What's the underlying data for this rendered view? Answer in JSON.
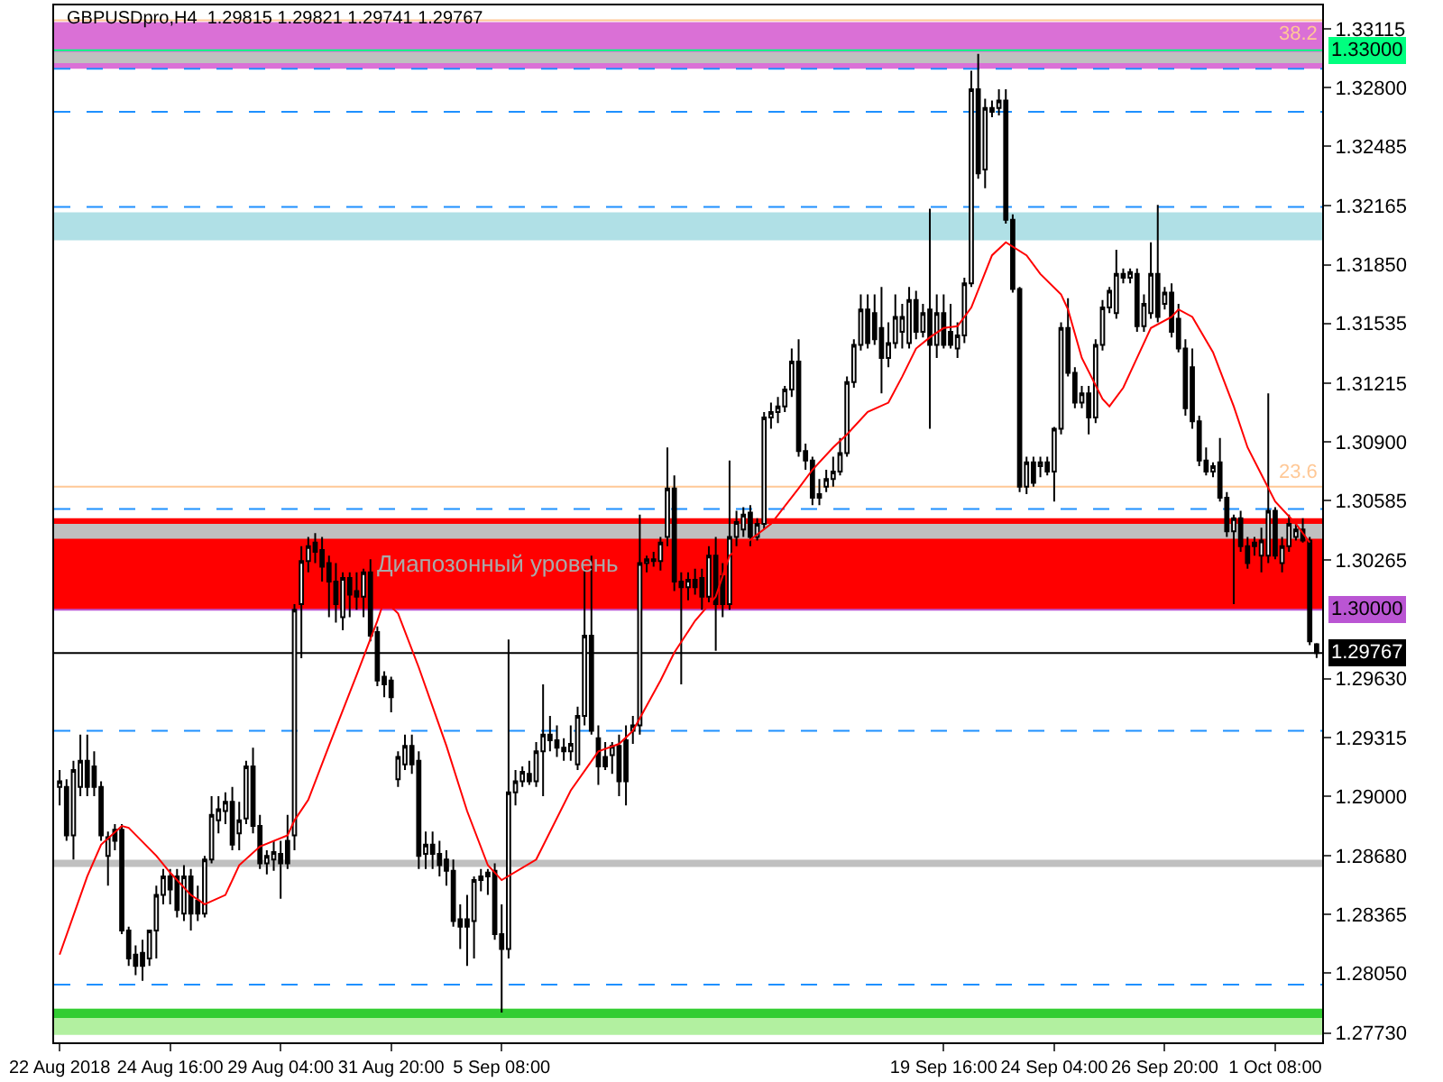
{
  "chart_data": {
    "type": "candlestick",
    "title": "GBPUSDpro,H4  1.29815 1.29821 1.29741 1.29767",
    "color": "#000000",
    "categories": [
      "22 Aug 2018",
      null,
      null,
      null,
      null,
      null,
      null,
      null,
      null,
      null,
      null,
      null,
      null,
      null,
      null,
      null,
      "24 Aug 16:00",
      null,
      null,
      null,
      null,
      null,
      null,
      null,
      null,
      null,
      null,
      null,
      null,
      null,
      null,
      null,
      "29 Aug 04:00",
      null,
      null,
      null,
      null,
      null,
      null,
      null,
      null,
      null,
      null,
      null,
      null,
      null,
      null,
      null,
      "31 Aug 20:00",
      null,
      null,
      null,
      null,
      null,
      null,
      null,
      null,
      null,
      null,
      null,
      null,
      null,
      null,
      null,
      "5 Sep 08:00",
      null,
      null,
      null,
      null,
      null,
      null,
      null,
      null,
      null,
      null,
      null,
      null,
      null,
      null,
      null,
      null,
      null,
      null,
      null,
      null,
      null,
      null,
      null,
      null,
      null,
      null,
      null,
      null,
      null,
      null,
      null,
      null,
      null,
      null,
      null,
      null,
      null,
      null,
      null,
      null,
      null,
      null,
      null,
      null,
      null,
      null,
      null,
      null,
      null,
      null,
      null,
      null,
      null,
      null,
      null,
      null,
      null,
      null,
      null,
      null,
      null,
      null,
      null,
      "19 Sep 16:00",
      null,
      null,
      null,
      null,
      null,
      null,
      null,
      null,
      null,
      null,
      null,
      null,
      null,
      null,
      null,
      "24 Sep 04:00",
      null,
      null,
      null,
      null,
      null,
      null,
      null,
      null,
      null,
      null,
      null,
      null,
      null,
      null,
      null,
      "26 Sep 20:00",
      null,
      null,
      null,
      null,
      null,
      null,
      null,
      null,
      null,
      null,
      null,
      null,
      null,
      null,
      null,
      "1 Oct 08:00",
      null,
      null,
      null,
      null,
      null,
      null
    ],
    "ohlc": [
      [
        1.2905,
        1.2914,
        1.2895,
        1.2908
      ],
      [
        1.2905,
        1.2909,
        1.2876,
        1.2879
      ],
      [
        1.2879,
        1.2919,
        1.2866,
        1.2914
      ],
      [
        1.2905,
        1.2933,
        1.29,
        1.2919
      ],
      [
        1.2919,
        1.2933,
        1.29,
        1.2905
      ],
      [
        1.2916,
        1.2924,
        1.29,
        1.2905
      ],
      [
        1.2905,
        1.2908,
        1.2876,
        1.2879
      ],
      [
        1.2868,
        1.2881,
        1.2852,
        1.2878
      ],
      [
        1.2882,
        1.2885,
        1.2871,
        1.2876
      ],
      [
        1.2882,
        1.2885,
        1.2826,
        1.2828
      ],
      [
        1.2828,
        1.283,
        1.2809,
        1.2813
      ],
      [
        1.2815,
        1.282,
        1.2804,
        1.2809
      ],
      [
        1.2816,
        1.2823,
        1.2801,
        1.2809
      ],
      [
        1.2813,
        1.2828,
        1.2809,
        1.2828
      ],
      [
        1.2828,
        1.2852,
        1.2813,
        1.2847
      ],
      [
        1.2847,
        1.2861,
        1.2842,
        1.2857
      ],
      [
        1.2857,
        1.2861,
        1.2842,
        1.285
      ],
      [
        1.2857,
        1.2861,
        1.2835,
        1.2839
      ],
      [
        1.2837,
        1.2863,
        1.2833,
        1.2857
      ],
      [
        1.2857,
        1.2861,
        1.2828,
        1.2837
      ],
      [
        1.2844,
        1.2852,
        1.2833,
        1.2837
      ],
      [
        1.2837,
        1.2868,
        1.2835,
        1.2866
      ],
      [
        1.2866,
        1.29,
        1.2864,
        1.289
      ],
      [
        1.2887,
        1.29,
        1.288,
        1.2893
      ],
      [
        1.2892,
        1.2902,
        1.2885,
        1.2897
      ],
      [
        1.2897,
        1.2905,
        1.2871,
        1.2874
      ],
      [
        1.288,
        1.2897,
        1.2871,
        1.2887
      ],
      [
        1.2888,
        1.2919,
        1.2885,
        1.2916
      ],
      [
        1.2916,
        1.2926,
        1.288,
        1.2884
      ],
      [
        1.2884,
        1.289,
        1.2861,
        1.2864
      ],
      [
        1.2864,
        1.2871,
        1.2858,
        1.2868
      ],
      [
        1.2866,
        1.2876,
        1.286,
        1.287
      ],
      [
        1.2869,
        1.2876,
        1.2845,
        1.2864
      ],
      [
        1.2876,
        1.289,
        1.2861,
        1.2864
      ],
      [
        1.2879,
        1.3003,
        1.2871,
        1.3
      ],
      [
        1.3003,
        1.3034,
        1.2974,
        1.3026
      ],
      [
        1.3026,
        1.3039,
        1.302,
        1.3034
      ],
      [
        1.3036,
        1.3041,
        1.3025,
        1.3031
      ],
      [
        1.3032,
        1.3039,
        1.3015,
        1.3023
      ],
      [
        1.3025,
        1.3029,
        1.2996,
        1.3015
      ],
      [
        1.3015,
        1.3025,
        1.2993,
        1.3003
      ],
      [
        1.2996,
        1.302,
        1.2989,
        1.3017
      ],
      [
        1.3017,
        1.302,
        1.2996,
        1.3008
      ],
      [
        1.301,
        1.302,
        1.3,
        1.3007
      ],
      [
        1.3007,
        1.3022,
        1.2996,
        1.302
      ],
      [
        1.302,
        1.3027,
        1.2983,
        1.2986
      ],
      [
        1.2988,
        1.2991,
        1.2959,
        1.2962
      ],
      [
        1.2964,
        1.2967,
        1.2953,
        1.296
      ],
      [
        1.2962,
        1.2964,
        1.2945,
        1.2953
      ],
      [
        1.2909,
        1.2924,
        1.2905,
        1.2921
      ],
      [
        1.2917,
        1.2933,
        1.2914,
        1.2927
      ],
      [
        1.2927,
        1.2933,
        1.2912,
        1.2917
      ],
      [
        1.2919,
        1.2924,
        1.2861,
        1.2868
      ],
      [
        1.2869,
        1.2881,
        1.2861,
        1.2874
      ],
      [
        1.2874,
        1.2881,
        1.2861,
        1.2869
      ],
      [
        1.2869,
        1.2876,
        1.2857,
        1.2863
      ],
      [
        1.2866,
        1.2871,
        1.2852,
        1.286
      ],
      [
        1.286,
        1.2866,
        1.283,
        1.2833
      ],
      [
        1.2834,
        1.2842,
        1.2818,
        1.283
      ],
      [
        1.2834,
        1.2847,
        1.2809,
        1.283
      ],
      [
        1.2833,
        1.2857,
        1.2813,
        1.2855
      ],
      [
        1.2855,
        1.2861,
        1.2849,
        1.2857
      ],
      [
        1.2859,
        1.2861,
        1.2847,
        1.2857
      ],
      [
        1.286,
        1.2864,
        1.2823,
        1.2826
      ],
      [
        1.2826,
        1.2842,
        1.2784,
        1.2818
      ],
      [
        1.2818,
        1.2984,
        1.2813,
        1.2902
      ],
      [
        1.2902,
        1.2914,
        1.2895,
        1.2908
      ],
      [
        1.2908,
        1.2916,
        1.2905,
        1.2913
      ],
      [
        1.2912,
        1.2919,
        1.2906,
        1.2908
      ],
      [
        1.2908,
        1.2929,
        1.2905,
        1.2924
      ],
      [
        1.2924,
        1.296,
        1.29,
        1.2933
      ],
      [
        1.2933,
        1.2943,
        1.2924,
        1.293
      ],
      [
        1.293,
        1.2938,
        1.2921,
        1.2926
      ],
      [
        1.2926,
        1.2931,
        1.2919,
        1.2924
      ],
      [
        1.2924,
        1.2938,
        1.2919,
        1.2928
      ],
      [
        1.2917,
        1.2948,
        1.2914,
        1.2943
      ],
      [
        1.2943,
        1.3022,
        1.2938,
        1.2986
      ],
      [
        1.2986,
        1.3029,
        1.2933,
        1.2935
      ],
      [
        1.2931,
        1.2938,
        1.2906,
        1.2916
      ],
      [
        1.2921,
        1.2929,
        1.2914,
        1.2916
      ],
      [
        1.2922,
        1.2929,
        1.2912,
        1.2927
      ],
      [
        1.2927,
        1.2933,
        1.29,
        1.2908
      ],
      [
        1.293,
        1.2938,
        1.2895,
        1.2908
      ],
      [
        1.2935,
        1.2943,
        1.2928,
        1.2938
      ],
      [
        1.2938,
        1.3051,
        1.2933,
        1.3025
      ],
      [
        1.3025,
        1.3029,
        1.302,
        1.3027
      ],
      [
        1.3027,
        1.3031,
        1.3023,
        1.3026
      ],
      [
        1.3026,
        1.3039,
        1.3021,
        1.3036
      ],
      [
        1.3039,
        1.3087,
        1.3034,
        1.3065
      ],
      [
        1.3065,
        1.3072,
        1.301,
        1.3015
      ],
      [
        1.3015,
        1.302,
        1.296,
        1.3012
      ],
      [
        1.3012,
        1.302,
        1.3005,
        1.3016
      ],
      [
        1.3016,
        1.3022,
        1.3008,
        1.3012
      ],
      [
        1.3017,
        1.3022,
        1.3,
        1.3007
      ],
      [
        1.3007,
        1.3034,
        1.3004,
        1.3029
      ],
      [
        1.3029,
        1.3039,
        1.2978,
        1.3003
      ],
      [
        1.3018,
        1.3025,
        1.2996,
        1.3003
      ],
      [
        1.3003,
        1.308,
        1.3,
        1.3039
      ],
      [
        1.3039,
        1.3053,
        1.3034,
        1.3047
      ],
      [
        1.3043,
        1.3055,
        1.3039,
        1.3051
      ],
      [
        1.3052,
        1.3056,
        1.3034,
        1.3039
      ],
      [
        1.3039,
        1.3049,
        1.3037,
        1.3046
      ],
      [
        1.3046,
        1.3106,
        1.3043,
        1.3103
      ],
      [
        1.3103,
        1.3111,
        1.3097,
        1.3106
      ],
      [
        1.3106,
        1.3114,
        1.31,
        1.3109
      ],
      [
        1.3109,
        1.312,
        1.3106,
        1.3118
      ],
      [
        1.3118,
        1.314,
        1.3114,
        1.3133
      ],
      [
        1.3133,
        1.3145,
        1.3082,
        1.3085
      ],
      [
        1.3085,
        1.3089,
        1.3075,
        1.308
      ],
      [
        1.308,
        1.3082,
        1.3056,
        1.306
      ],
      [
        1.306,
        1.307,
        1.3056,
        1.3062
      ],
      [
        1.3066,
        1.3075,
        1.3063,
        1.307
      ],
      [
        1.307,
        1.3082,
        1.3066,
        1.3074
      ],
      [
        1.3074,
        1.3092,
        1.3072,
        1.3084
      ],
      [
        1.3084,
        1.3125,
        1.3082,
        1.3122
      ],
      [
        1.3122,
        1.3145,
        1.3119,
        1.3142
      ],
      [
        1.3142,
        1.3169,
        1.3139,
        1.3161
      ],
      [
        1.3161,
        1.3169,
        1.314,
        1.3143
      ],
      [
        1.3159,
        1.3169,
        1.3142,
        1.3145
      ],
      [
        1.3151,
        1.3173,
        1.3116,
        1.3135
      ],
      [
        1.3135,
        1.3154,
        1.313,
        1.3143
      ],
      [
        1.3143,
        1.3169,
        1.314,
        1.3157
      ],
      [
        1.3149,
        1.3164,
        1.314,
        1.3157
      ],
      [
        1.3143,
        1.3173,
        1.314,
        1.3166
      ],
      [
        1.3166,
        1.3171,
        1.3145,
        1.3149
      ],
      [
        1.3149,
        1.3164,
        1.3146,
        1.3159
      ],
      [
        1.3161,
        1.3215,
        1.3097,
        1.3142
      ],
      [
        1.3142,
        1.3169,
        1.3135,
        1.3159
      ],
      [
        1.3159,
        1.3169,
        1.314,
        1.3142
      ],
      [
        1.3149,
        1.3164,
        1.314,
        1.3142
      ],
      [
        1.314,
        1.3154,
        1.3135,
        1.3147
      ],
      [
        1.3147,
        1.3178,
        1.3143,
        1.3175
      ],
      [
        1.3175,
        1.3289,
        1.3173,
        1.3279
      ],
      [
        1.3279,
        1.3298,
        1.3231,
        1.3234
      ],
      [
        1.3236,
        1.3274,
        1.3226,
        1.3269
      ],
      [
        1.3269,
        1.3273,
        1.3264,
        1.3267
      ],
      [
        1.3269,
        1.3279,
        1.3265,
        1.3273
      ],
      [
        1.3273,
        1.3279,
        1.3207,
        1.3209
      ],
      [
        1.3209,
        1.3212,
        1.317,
        1.3172
      ],
      [
        1.3172,
        1.3173,
        1.3063,
        1.3066
      ],
      [
        1.3066,
        1.3082,
        1.3062,
        1.3079
      ],
      [
        1.3079,
        1.3082,
        1.3066,
        1.3068
      ],
      [
        1.3077,
        1.3082,
        1.3071,
        1.3079
      ],
      [
        1.3079,
        1.3082,
        1.3072,
        1.3074
      ],
      [
        1.3074,
        1.3098,
        1.3058,
        1.3097
      ],
      [
        1.3097,
        1.3154,
        1.3094,
        1.3151
      ],
      [
        1.3151,
        1.3167,
        1.3125,
        1.3127
      ],
      [
        1.3127,
        1.313,
        1.3108,
        1.3111
      ],
      [
        1.3111,
        1.312,
        1.3108,
        1.3116
      ],
      [
        1.3116,
        1.312,
        1.3094,
        1.3103
      ],
      [
        1.3103,
        1.3145,
        1.31,
        1.3142
      ],
      [
        1.3142,
        1.3166,
        1.3139,
        1.3162
      ],
      [
        1.3162,
        1.3173,
        1.3159,
        1.3171
      ],
      [
        1.3159,
        1.3193,
        1.3156,
        1.318
      ],
      [
        1.318,
        1.3183,
        1.3175,
        1.3178
      ],
      [
        1.3178,
        1.3183,
        1.3175,
        1.3181
      ],
      [
        1.318,
        1.3183,
        1.3149,
        1.3152
      ],
      [
        1.3152,
        1.3169,
        1.3149,
        1.3164
      ],
      [
        1.3159,
        1.3197,
        1.3156,
        1.318
      ],
      [
        1.318,
        1.3217,
        1.3154,
        1.3157
      ],
      [
        1.3164,
        1.3173,
        1.3161,
        1.317
      ],
      [
        1.317,
        1.3175,
        1.3146,
        1.3149
      ],
      [
        1.3156,
        1.3164,
        1.3138,
        1.314
      ],
      [
        1.314,
        1.3145,
        1.3104,
        1.3108
      ],
      [
        1.313,
        1.314,
        1.3097,
        1.3101
      ],
      [
        1.3101,
        1.3104,
        1.3077,
        1.308
      ],
      [
        1.308,
        1.3087,
        1.3072,
        1.3074
      ],
      [
        1.3074,
        1.3079,
        1.3071,
        1.3077
      ],
      [
        1.3079,
        1.3092,
        1.3058,
        1.306
      ],
      [
        1.306,
        1.3063,
        1.3039,
        1.3042
      ],
      [
        1.3042,
        1.3051,
        1.3003,
        1.3049
      ],
      [
        1.3049,
        1.3053,
        1.3031,
        1.3034
      ],
      [
        1.3034,
        1.3039,
        1.3022,
        1.3025
      ],
      [
        1.3034,
        1.3039,
        1.3029,
        1.3036
      ],
      [
        1.3029,
        1.3044,
        1.302,
        1.3037
      ],
      [
        1.3029,
        1.3116,
        1.3025,
        1.3053
      ],
      [
        1.3053,
        1.3055,
        1.3027,
        1.3029
      ],
      [
        1.3025,
        1.3039,
        1.302,
        1.3034
      ],
      [
        1.3034,
        1.3051,
        1.3031,
        1.3046
      ],
      [
        1.3039,
        1.3046,
        1.3037,
        1.3043
      ],
      [
        1.3043,
        1.3049,
        1.3036,
        1.3037
      ],
      [
        1.3037,
        1.3039,
        1.2981,
        1.2983
      ],
      [
        1.29815,
        1.29821,
        1.29741,
        1.29767
      ]
    ],
    "series": [
      {
        "type": "line",
        "color": "#ff0000",
        "values": [
          1.2815,
          null,
          null,
          null,
          1.2857,
          null,
          1.2874,
          null,
          null,
          1.2884,
          1.2883,
          null,
          null,
          null,
          1.2868,
          null,
          1.2859,
          null,
          null,
          1.2847,
          null,
          1.2842,
          null,
          null,
          1.2847,
          null,
          1.2863,
          null,
          null,
          1.2873,
          null,
          null,
          null,
          1.2879,
          1.2887,
          null,
          1.2898,
          null,
          null,
          1.2927,
          null,
          null,
          null,
          1.2965,
          null,
          null,
          1.2994,
          1.3005,
          null,
          1.2998,
          null,
          null,
          1.2969,
          null,
          null,
          null,
          1.2927,
          null,
          null,
          1.2892,
          null,
          null,
          1.2863,
          null,
          1.2855,
          null,
          null,
          null,
          null,
          1.2866,
          null,
          null,
          null,
          null,
          1.2903,
          null,
          null,
          null,
          1.2924,
          null,
          null,
          1.2928,
          null,
          1.2935,
          null,
          null,
          null,
          1.2962,
          null,
          1.2977,
          null,
          null,
          1.2994,
          null,
          null,
          1.3007,
          null,
          1.3029,
          null,
          null,
          null,
          null,
          null,
          1.3046,
          null,
          null,
          null,
          1.3065,
          null,
          1.3075,
          null,
          null,
          1.3087,
          null,
          1.3094,
          null,
          null,
          1.3106,
          null,
          null,
          1.3111,
          null,
          1.3125,
          null,
          1.314,
          null,
          1.3146,
          null,
          1.3151,
          null,
          1.3152,
          null,
          1.3162,
          null,
          null,
          1.319,
          null,
          1.3197,
          null,
          null,
          1.319,
          null,
          1.318,
          null,
          null,
          1.3169,
          1.3161,
          null,
          1.3135,
          null,
          null,
          1.3113,
          1.3109,
          null,
          1.3119,
          null,
          1.3135,
          null,
          1.3151,
          null,
          null,
          1.3157,
          1.3161,
          null,
          1.3157,
          null,
          null,
          1.3138,
          null,
          null,
          1.3109,
          null,
          1.3087,
          null,
          null,
          null,
          1.3058,
          null,
          null,
          1.3046,
          null,
          1.3036,
          null
        ]
      }
    ],
    "ylim": [
      1.2768,
      1.3324
    ],
    "yticks": [
      1.33115,
      {
        "value": 1.328,
        "label": "1.32800"
      },
      1.32485,
      1.32165,
      {
        "value": 1.3185,
        "label": "1.31850"
      },
      1.31535,
      1.31215,
      {
        "value": 1.309,
        "label": "1.30900"
      },
      1.30585,
      1.30265,
      {
        "value": 1.2963,
        "label": "1.29630"
      },
      1.29315,
      {
        "value": 1.29,
        "label": "1.29000"
      },
      {
        "value": 1.2868,
        "label": "1.28680"
      },
      1.28365,
      {
        "value": 1.2805,
        "label": "1.28050"
      },
      {
        "value": 1.2773,
        "label": "1.27730"
      }
    ],
    "bands": [
      {
        "axis": "y",
        "from": 1.329,
        "to": 1.3315,
        "color": "#da70d6"
      },
      {
        "axis": "y",
        "from": 1.3293,
        "to": 1.3299,
        "color": "#c0c0c0"
      },
      {
        "axis": "y",
        "from": 1.3198,
        "to": 1.3213,
        "color": "#b0e0e6"
      },
      {
        "axis": "y",
        "from": 1.3,
        "to": 1.3049,
        "color": "#ff0000",
        "label": "Диапозонный уровень"
      },
      {
        "axis": "y",
        "from": 1.3038,
        "to": 1.3046,
        "color": "#c0c0c0"
      },
      {
        "axis": "y",
        "from": 1.2772,
        "to": 1.2786,
        "color": "#b2f0a0"
      },
      {
        "axis": "y",
        "from": 1.2781,
        "to": 1.2786,
        "color": "#32cd32"
      }
    ],
    "ref_lines": [
      {
        "axis": "y",
        "value": 1.3316,
        "color": "#ffc896",
        "line_style": "solid"
      },
      {
        "axis": "y",
        "value": 1.3066,
        "color": "#ffc896",
        "line_style": "solid"
      },
      {
        "axis": "y",
        "value": 1.33,
        "label": "1.33000",
        "color": "#00ff7f"
      },
      {
        "axis": "y",
        "value": 1.3,
        "label": "1.30000",
        "color": "#ba55d3"
      },
      {
        "axis": "y",
        "value": 1.29767,
        "label": "1.29767",
        "color": "#000000"
      },
      {
        "axis": "y",
        "value": 1.329,
        "color": "#1e90ff",
        "line_style": "dashed"
      },
      {
        "axis": "y",
        "value": 1.3267,
        "color": "#1e90ff",
        "line_style": "dashed"
      },
      {
        "axis": "y",
        "value": 1.3216,
        "color": "#1e90ff",
        "line_style": "dashed"
      },
      {
        "axis": "y",
        "value": 1.3054,
        "color": "#1e90ff",
        "line_style": "dashed"
      },
      {
        "axis": "y",
        "value": 1.2935,
        "color": "#1e90ff",
        "line_style": "dashed"
      },
      {
        "axis": "y",
        "value": 1.2799,
        "color": "#1e90ff",
        "line_style": "dashed"
      },
      {
        "axis": "y",
        "value": 1.2864,
        "color": "#c0c0c0"
      }
    ],
    "annotations": [
      {
        "text": "38.2",
        "y": 1.3316
      },
      {
        "text": "23.6",
        "y": 1.3066
      }
    ]
  }
}
